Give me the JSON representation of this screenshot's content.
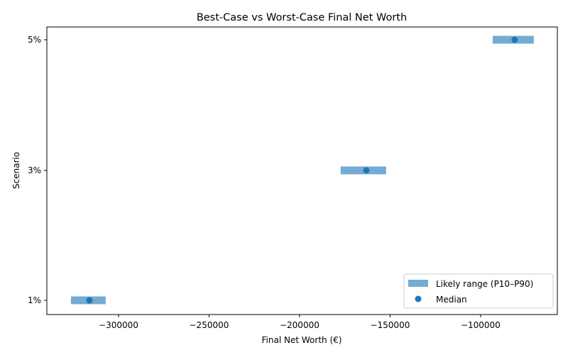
{
  "chart_data": {
    "type": "range-dot",
    "title": "Best-Case vs Worst-Case Final Net Worth",
    "xlabel": "Final Net Worth (€)",
    "ylabel": "Scenario",
    "categories": [
      "1%",
      "3%",
      "5%"
    ],
    "series": [
      {
        "name": "Likely range (P10–P90)",
        "kind": "range",
        "low": [
          -326300,
          -177300,
          -93300
        ],
        "high": [
          -307100,
          -152200,
          -70600
        ]
      },
      {
        "name": "Median",
        "kind": "scatter",
        "values": [
          -316100,
          -163100,
          -81200
        ]
      }
    ],
    "xlim": [
      -339600,
      -57600
    ],
    "xticks": [
      -300000,
      -250000,
      -200000,
      -150000,
      -100000
    ],
    "xtick_labels": [
      "−300000",
      "−250000",
      "−200000",
      "−150000",
      "−100000"
    ],
    "grid": false,
    "legend_position": "lower right",
    "colors": {
      "range": "#75aad3",
      "median": "#1f77b4"
    }
  },
  "legend": {
    "range_label": "Likely range (P10–P90)",
    "median_label": "Median"
  }
}
